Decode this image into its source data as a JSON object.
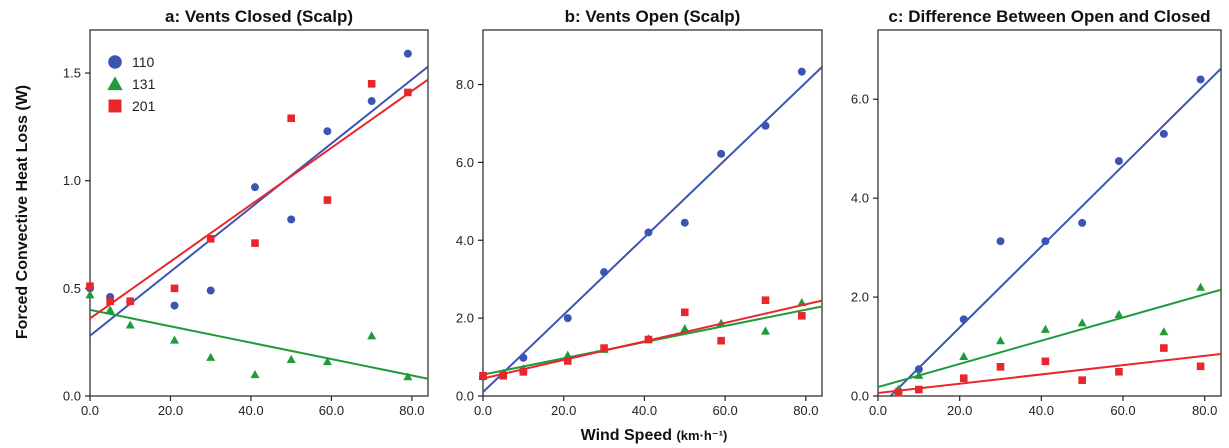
{
  "ylabel": "Forced Convective Heat Loss (W)",
  "xlabel": "Wind Speed (km·h⁻¹)",
  "colors": {
    "110": "#3a55b4",
    "131": "#1f9b3a",
    "201": "#e8262c"
  },
  "chart_data": [
    {
      "type": "scatter",
      "title": "a: Vents Closed (Scalp)",
      "xlim": [
        0,
        84
      ],
      "ylim": [
        0,
        1.7
      ],
      "xticks": [
        "0.0",
        "20.0",
        "40.0",
        "60.0",
        "80.0"
      ],
      "yticks": [
        "0.0",
        "0.5",
        "1.0",
        "1.5"
      ],
      "legend": {
        "position": "top-left",
        "entries": [
          "110",
          "131",
          "201"
        ]
      },
      "series": [
        {
          "name": "110",
          "marker": "circle",
          "x": [
            0,
            5,
            10,
            21,
            30,
            41,
            50,
            59,
            70,
            79
          ],
          "y": [
            0.5,
            0.46,
            0.44,
            0.42,
            0.49,
            0.97,
            0.82,
            1.23,
            1.37,
            1.59
          ],
          "fit": [
            0.28,
            1.53
          ]
        },
        {
          "name": "131",
          "marker": "triangle",
          "x": [
            0,
            5,
            10,
            21,
            30,
            41,
            50,
            59,
            70,
            79
          ],
          "y": [
            0.47,
            0.4,
            0.33,
            0.26,
            0.18,
            0.1,
            0.17,
            0.16,
            0.28,
            0.09
          ],
          "fit": [
            0.4,
            0.08
          ]
        },
        {
          "name": "201",
          "marker": "square",
          "x": [
            0,
            5,
            10,
            21,
            30,
            41,
            50,
            59,
            70,
            79
          ],
          "y": [
            0.51,
            0.44,
            0.44,
            0.5,
            0.73,
            0.71,
            1.29,
            0.91,
            1.45,
            1.41
          ],
          "fit": [
            0.36,
            1.47
          ]
        }
      ]
    },
    {
      "type": "scatter",
      "title": "b: Vents Open (Scalp)",
      "xlim": [
        0,
        84
      ],
      "ylim": [
        0,
        9.4
      ],
      "xticks": [
        "0.0",
        "20.0",
        "40.0",
        "60.0",
        "80.0"
      ],
      "yticks": [
        "0.0",
        "2.0",
        "4.0",
        "6.0",
        "8.0"
      ],
      "series": [
        {
          "name": "110",
          "marker": "circle",
          "x": [
            0,
            5,
            10,
            21,
            30,
            41,
            50,
            59,
            70,
            79
          ],
          "y": [
            0.5,
            0.55,
            0.98,
            2.0,
            3.18,
            4.2,
            4.45,
            6.22,
            6.94,
            8.33
          ],
          "fit": [
            0.1,
            8.45
          ]
        },
        {
          "name": "131",
          "marker": "triangle",
          "x": [
            0,
            5,
            10,
            21,
            30,
            41,
            50,
            59,
            70,
            79
          ],
          "y": [
            0.5,
            0.58,
            0.7,
            1.05,
            1.2,
            1.47,
            1.73,
            1.87,
            1.67,
            2.4
          ],
          "fit": [
            0.55,
            2.3
          ]
        },
        {
          "name": "201",
          "marker": "square",
          "x": [
            0,
            5,
            10,
            21,
            30,
            41,
            50,
            59,
            70,
            79
          ],
          "y": [
            0.52,
            0.52,
            0.62,
            0.9,
            1.23,
            1.45,
            2.15,
            1.42,
            2.46,
            2.06
          ],
          "fit": [
            0.45,
            2.45
          ]
        }
      ]
    },
    {
      "type": "scatter",
      "title": "c: Difference Between Open and Closed",
      "xlim": [
        0,
        84
      ],
      "ylim": [
        0,
        7.4
      ],
      "xticks": [
        "0.0",
        "20.0",
        "40.0",
        "60.0",
        "80.0"
      ],
      "yticks": [
        "0.0",
        "2.0",
        "4.0",
        "6.0"
      ],
      "series": [
        {
          "name": "110",
          "marker": "circle",
          "x": [
            5,
            10,
            21,
            30,
            41,
            50,
            59,
            70,
            79
          ],
          "y": [
            0.1,
            0.54,
            1.55,
            3.13,
            3.13,
            3.5,
            4.75,
            5.3,
            6.4
          ],
          "fit": [
            -0.25,
            6.62
          ]
        },
        {
          "name": "131",
          "marker": "triangle",
          "x": [
            5,
            10,
            21,
            30,
            41,
            50,
            59,
            70,
            79
          ],
          "y": [
            0.14,
            0.42,
            0.8,
            1.12,
            1.35,
            1.48,
            1.65,
            1.3,
            2.2
          ],
          "fit": [
            0.18,
            2.15
          ]
        },
        {
          "name": "201",
          "marker": "square",
          "x": [
            5,
            10,
            21,
            30,
            41,
            50,
            59,
            70,
            79
          ],
          "y": [
            0.07,
            0.13,
            0.36,
            0.59,
            0.7,
            0.32,
            0.49,
            0.97,
            0.6
          ],
          "fit": [
            0.06,
            0.85
          ]
        }
      ]
    }
  ]
}
